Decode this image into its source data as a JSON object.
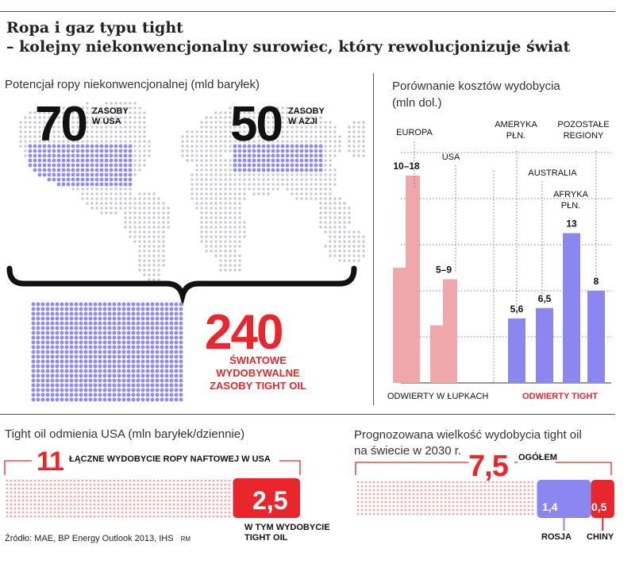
{
  "header": {
    "title_line1": "Ropa i gaz typu tight",
    "title_line2": "– kolejny niekonwencjonalny surowiec, który rewolucjonizuje świat"
  },
  "potential": {
    "subtitle": "Potencjał ropy niekonwencjonalnej (mld baryłek)",
    "usa_value": "70",
    "usa_label_1": "ZASOBY",
    "usa_label_2": "W USA",
    "asia_value": "50",
    "asia_label_1": "ZASOBY",
    "asia_label_2": "W AZJI",
    "world_value": "240",
    "world_label_1": "ŚWIATOWE",
    "world_label_2": "WYDOBYWALNE",
    "world_label_3": "ZASOBY TIGHT OIL"
  },
  "costs": {
    "subtitle_1": "Porównanie kosztów wydobycia",
    "subtitle_2": "(mln dol.)",
    "group_shale": "ODWIERTY W ŁUPKACH",
    "group_tight": "ODWIERTY TIGHT"
  },
  "us_tight": {
    "subtitle": "Tight oil odmienia USA (mln baryłek/dziennie)",
    "total_value": "11",
    "total_label": "ŁĄCZNE WYDOBYCIE ROPY NAFTOWEJ W USA",
    "tight_value": "2,5",
    "tight_label_1": "W TYM WYDOBYCIE",
    "tight_label_2": "TIGHT OIL"
  },
  "forecast": {
    "subtitle_1": "Prognozowana wielkość wydobycia tight oil",
    "subtitle_2": "na świecie w 2030 r.",
    "total_value": "7,5",
    "total_label": "OGÓŁEM",
    "russia_value": "1,4",
    "russia_label": "ROSJA",
    "china_value": "0,5",
    "china_label": "CHINY"
  },
  "source": {
    "text": "Źródło: MAE, BP Energy Outlook 2013, IHS",
    "initials": "RM"
  },
  "colors": {
    "red": "#e8262c",
    "pink": "#f0a7ab",
    "purple": "#8b86f0",
    "dot_grey": "#c9c9cf",
    "dot_purple": "#8f8bef"
  },
  "chart_data": [
    {
      "type": "bar",
      "title": "Porównanie kosztów wydobycia",
      "ylabel": "(mln dol.)",
      "categories": [
        "EUROPA",
        "USA",
        "AMERYKA PŁN.",
        "AUSTRALIA",
        "AFRYKA PŁN.",
        "POZOSTAŁE REGIONY"
      ],
      "groups": [
        "ODWIERTY W ŁUPKACH",
        "ODWIERTY W ŁUPKACH",
        "ODWIERTY TIGHT",
        "ODWIERTY TIGHT",
        "ODWIERTY TIGHT",
        "ODWIERTY TIGHT"
      ],
      "low": [
        10,
        5,
        null,
        null,
        null,
        null
      ],
      "high": [
        18,
        9,
        5.6,
        6.5,
        13,
        8
      ],
      "labels": [
        "10–18",
        "5–9",
        "5,6",
        "6,5",
        "13",
        "8"
      ],
      "ylim": [
        0,
        20
      ],
      "grid": true
    },
    {
      "type": "bar",
      "title": "Tight oil odmienia USA",
      "ylabel": "mln baryłek/dziennie",
      "series": [
        {
          "name": "ŁĄCZNE WYDOBYCIE ROPY NAFTOWEJ W USA",
          "values": [
            11
          ]
        },
        {
          "name": "W TYM WYDOBYCIE TIGHT OIL",
          "values": [
            2.5
          ]
        }
      ]
    },
    {
      "type": "bar",
      "title": "Prognozowana wielkość wydobycia tight oil na świecie w 2030 r.",
      "series": [
        {
          "name": "OGÓŁEM",
          "values": [
            7.5
          ]
        },
        {
          "name": "ROSJA",
          "values": [
            1.4
          ]
        },
        {
          "name": "CHINY",
          "values": [
            0.5
          ]
        }
      ]
    }
  ]
}
